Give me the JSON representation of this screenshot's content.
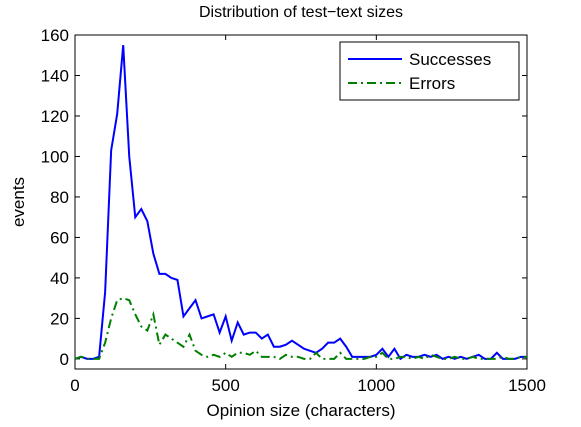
{
  "chart_data": {
    "type": "line",
    "title": "Distribution of test−text sizes",
    "x_label": "Opinion size (characters)",
    "y_label": "events",
    "x": [
      0,
      20,
      40,
      60,
      80,
      100,
      120,
      140,
      160,
      180,
      200,
      220,
      240,
      260,
      280,
      300,
      320,
      340,
      360,
      380,
      400,
      420,
      440,
      460,
      480,
      500,
      520,
      540,
      560,
      580,
      600,
      620,
      640,
      660,
      680,
      700,
      720,
      740,
      760,
      780,
      800,
      820,
      840,
      860,
      880,
      900,
      920,
      940,
      960,
      980,
      1000,
      1020,
      1040,
      1060,
      1080,
      1100,
      1120,
      1140,
      1160,
      1180,
      1200,
      1220,
      1240,
      1260,
      1280,
      1300,
      1320,
      1340,
      1360,
      1380,
      1400,
      1420,
      1440,
      1460,
      1480,
      1500
    ],
    "series": [
      {
        "name": "Successes",
        "color": "#0000ff",
        "line_style": "solid",
        "values": [
          0,
          1,
          0,
          0,
          1,
          33,
          103,
          121,
          155,
          100,
          70,
          74,
          68,
          52,
          42,
          42,
          40,
          39,
          21,
          25,
          29,
          20,
          21,
          22,
          13,
          21,
          9,
          18,
          12,
          13,
          13,
          10,
          12,
          6,
          6,
          7,
          9,
          7,
          5,
          4,
          3,
          5,
          8,
          8,
          10,
          6,
          1,
          1,
          1,
          1,
          2,
          5,
          1,
          5,
          0,
          2,
          1,
          1,
          2,
          1,
          2,
          0,
          1,
          0,
          1,
          0,
          1,
          2,
          0,
          0,
          3,
          0,
          0,
          0,
          1,
          1
        ]
      },
      {
        "name": "Errors",
        "color": "#007f00",
        "line_style": "dashdot",
        "values": [
          0,
          1,
          0,
          0,
          0,
          8,
          20,
          29,
          30,
          29,
          22,
          16,
          14,
          22,
          7,
          12,
          10,
          8,
          6,
          12,
          4,
          2,
          1,
          2,
          1,
          3,
          1,
          3,
          3,
          2,
          4,
          1,
          1,
          1,
          0,
          2,
          1,
          1,
          0,
          0,
          3,
          0,
          0,
          0,
          3,
          0,
          0,
          0,
          0,
          1,
          1,
          3,
          0,
          0,
          1,
          1,
          0,
          1,
          0,
          2,
          1,
          0,
          0,
          1,
          0,
          0,
          1,
          0,
          0,
          0,
          0,
          1,
          0,
          0,
          1,
          1
        ]
      }
    ],
    "xlim": [
      0,
      1500
    ],
    "xticks": [
      0,
      500,
      1000,
      1500
    ],
    "ylim": [
      -5,
      160
    ],
    "yticks": [
      0,
      20,
      40,
      60,
      80,
      100,
      120,
      140,
      160
    ],
    "legend": "upper right"
  }
}
